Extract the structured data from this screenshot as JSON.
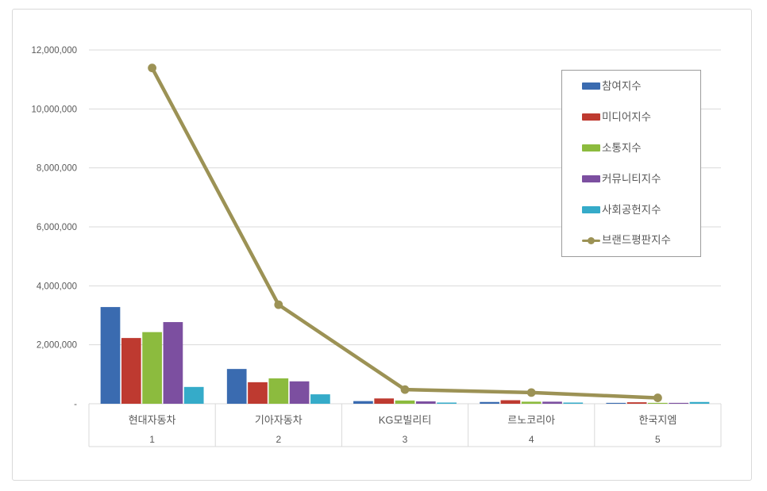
{
  "window": {
    "background": "#ffffff",
    "frame_border": "#d9d9d9",
    "legend_border": "#9c9c9c",
    "grid_color": "#d9d9d9",
    "axis_text_color": "#595959"
  },
  "chart_data": {
    "type": "bar",
    "title": "",
    "xlabel": "",
    "ylabel": "",
    "categories": [
      "현대자동차",
      "기아자동차",
      "KG모빌리티",
      "르노코리아",
      "한국지엠"
    ],
    "category_ranks": [
      "1",
      "2",
      "3",
      "4",
      "5"
    ],
    "series": [
      {
        "name": "참여지수",
        "type": "bar",
        "color": "#3a6bb0",
        "values": [
          3280000,
          1180000,
          90000,
          60000,
          30000
        ]
      },
      {
        "name": "미디어지수",
        "type": "bar",
        "color": "#be3a30",
        "values": [
          2230000,
          730000,
          180000,
          120000,
          50000
        ]
      },
      {
        "name": "소통지수",
        "type": "bar",
        "color": "#8cbb3e",
        "values": [
          2430000,
          860000,
          110000,
          70000,
          30000
        ]
      },
      {
        "name": "커뮤니티지수",
        "type": "bar",
        "color": "#7c4fa0",
        "values": [
          2770000,
          760000,
          80000,
          70000,
          30000
        ]
      },
      {
        "name": "사회공헌지수",
        "type": "bar",
        "color": "#35abc9",
        "values": [
          570000,
          320000,
          40000,
          40000,
          60000
        ]
      },
      {
        "name": "브랜드평판지수",
        "type": "line",
        "color": "#9c9255",
        "values": [
          11390000,
          3360000,
          480000,
          380000,
          200000
        ]
      }
    ],
    "ylim": [
      0,
      12000000
    ],
    "ytick_interval": 2000000,
    "ytick_labels": [
      "-",
      "2,000,000",
      "4,000,000",
      "6,000,000",
      "8,000,000",
      "10,000,000",
      "12,000,000"
    ],
    "grid": "horizontal",
    "legend_position": "inside-top-right"
  }
}
